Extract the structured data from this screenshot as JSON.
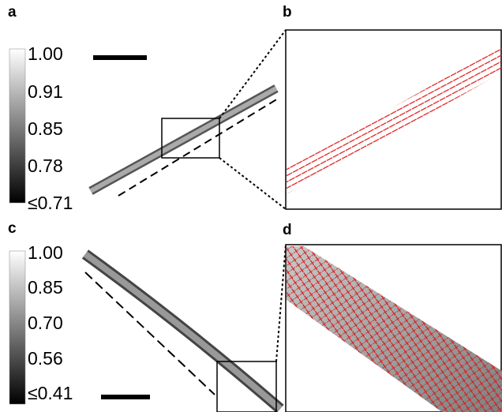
{
  "panels": [
    {
      "label": "a",
      "colorbar": [
        "1.00",
        "0.91",
        "0.85",
        "0.78",
        "≤0.71"
      ]
    },
    {
      "label": "b"
    },
    {
      "label": "c",
      "colorbar": [
        "1.00",
        "0.85",
        "0.70",
        "0.56",
        "≤0.41"
      ]
    },
    {
      "label": "d"
    }
  ]
}
